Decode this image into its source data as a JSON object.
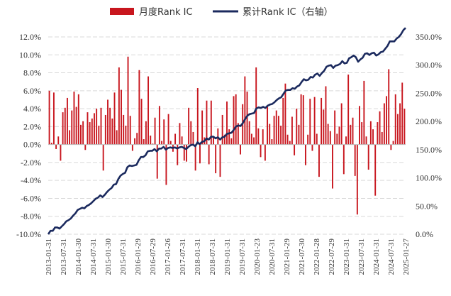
{
  "chart_data": {
    "type": "bar+line",
    "title": "",
    "legend": {
      "position": "top-center",
      "items": [
        {
          "label": "月度Rank IC",
          "kind": "bar"
        },
        {
          "label": "累计Rank IC（右轴）",
          "kind": "line"
        }
      ]
    },
    "grid": true,
    "colors": {
      "bar": "#c8161e",
      "line": "#1b2a5e",
      "grid": "#d9d9d9",
      "zero": "#bfbfbf"
    },
    "left_axis": {
      "ylim": [
        -10,
        12
      ],
      "unit": "%",
      "ticks": [
        "12.0%",
        "10.0%",
        "8.0%",
        "6.0%",
        "4.0%",
        "2.0%",
        "0.0%",
        "-2.0%",
        "-4.0%",
        "-6.0%",
        "-8.0%",
        "-10.0%"
      ]
    },
    "right_axis": {
      "ylim": [
        0,
        350
      ],
      "unit": "%",
      "ticks": [
        "350.0%",
        "300.0%",
        "250.0%",
        "200.0%",
        "150.0%",
        "100.0%",
        "50.0%",
        "0.0%"
      ]
    },
    "x_ticks": [
      "2013-01-31",
      "2013-07-31",
      "2014-01-30",
      "2014-07-31",
      "2015-01-30",
      "2015-07-31",
      "2016-01-29",
      "2016-07-29",
      "2017-01-26",
      "2017-07-31",
      "2018-01-31",
      "2018-07-31",
      "2019-01-31",
      "2019-07-31",
      "2020-01-23",
      "2020-07-31",
      "2021-01-29",
      "2021-07-30",
      "2022-01-28",
      "2022-07-29",
      "2023-01-31",
      "2023-07-31",
      "2024-01-31",
      "2024-07-31",
      "2025-01-27"
    ],
    "series": [
      {
        "name": "月度Rank IC",
        "type": "bar",
        "axis": "left",
        "values": [
          6.0,
          0.2,
          5.8,
          -0.5,
          0.9,
          -1.8,
          3.6,
          4.1,
          5.2,
          1.6,
          3.8,
          5.9,
          4.2,
          5.6,
          2.2,
          2.6,
          -0.6,
          3.6,
          2.5,
          2.9,
          3.5,
          4.0,
          2.1,
          4.1,
          -2.9,
          3.3,
          5.0,
          4.1,
          2.9,
          5.8,
          1.6,
          8.6,
          6.1,
          3.3,
          2.1,
          9.8,
          3.2,
          -0.7,
          0.7,
          1.3,
          8.3,
          5.1,
          0.6,
          2.6,
          7.6,
          1.0,
          0.1,
          3.0,
          -3.8,
          4.3,
          0.4,
          2.8,
          -4.5,
          3.4,
          0.4,
          -0.8,
          1.2,
          -2.3,
          2.4,
          0.9,
          -1.8,
          -1.9,
          4.1,
          2.6,
          1.4,
          -2.9,
          6.3,
          -2.1,
          3.8,
          0.8,
          4.9,
          -2.2,
          4.9,
          0.8,
          -3.2,
          1.8,
          -3.6,
          3.3,
          1.1,
          4.8,
          1.7,
          0.7,
          5.4,
          5.6,
          2.4,
          -1.1,
          4.5,
          7.6,
          5.9,
          2.6,
          1.2,
          0.8,
          8.6,
          1.8,
          -1.4,
          1.7,
          -1.8,
          4.2,
          2.3,
          0.6,
          3.2,
          3.8,
          3.2,
          2.1,
          5.2,
          6.8,
          1.1,
          0.4,
          3.1,
          -1.2,
          4.0,
          2.2,
          5.6,
          5.5,
          -2.3,
          1.1,
          5.1,
          -0.7,
          5.3,
          1.2,
          -3.6,
          5.2,
          3.9,
          6.5,
          2.3,
          1.5,
          -4.9,
          3.8,
          1.2,
          2.0,
          4.6,
          -3.3,
          0.9,
          7.8,
          2.2,
          3.0,
          -3.5,
          -7.8,
          4.3,
          2.5,
          7.1,
          0.9,
          -2.8,
          2.6,
          1.7,
          -5.7,
          2.5,
          3.7,
          1.4,
          4.6,
          5.4,
          8.4,
          -0.6,
          0.4,
          5.6,
          3.4,
          4.6,
          6.9,
          4.0
        ]
      },
      {
        "name": "累计Rank IC（右轴）",
        "type": "line",
        "axis": "right",
        "values": [
          0,
          6,
          6,
          12,
          12,
          10,
          14,
          18,
          23,
          25,
          28,
          33,
          37,
          43,
          45,
          47,
          46,
          50,
          52,
          55,
          59,
          63,
          65,
          69,
          66,
          70,
          75,
          79,
          82,
          88,
          89,
          98,
          104,
          107,
          109,
          119,
          122,
          121,
          122,
          123,
          131,
          137,
          137,
          140,
          147,
          148,
          148,
          151,
          147,
          152,
          152,
          155,
          150,
          153,
          154,
          153,
          154,
          152,
          154,
          155,
          153,
          151,
          155,
          158,
          159,
          156,
          163,
          160,
          164,
          165,
          170,
          168,
          173,
          173,
          170,
          172,
          168,
          172,
          173,
          178,
          179,
          180,
          185,
          191,
          193,
          192,
          197,
          204,
          210,
          213,
          214,
          215,
          223,
          225,
          224,
          226,
          224,
          228,
          230,
          231,
          234,
          238,
          241,
          243,
          249,
          255,
          256,
          256,
          259,
          258,
          262,
          264,
          270,
          275,
          273,
          274,
          279,
          278,
          283,
          285,
          281,
          286,
          290,
          297,
          299,
          300,
          295,
          299,
          300,
          302,
          307,
          303,
          304,
          312,
          314,
          317,
          314,
          306,
          310,
          313,
          320,
          321,
          318,
          321,
          322,
          317,
          319,
          323,
          324,
          329,
          334,
          342,
          342,
          342,
          347,
          350,
          355,
          362,
          366
        ]
      }
    ]
  }
}
